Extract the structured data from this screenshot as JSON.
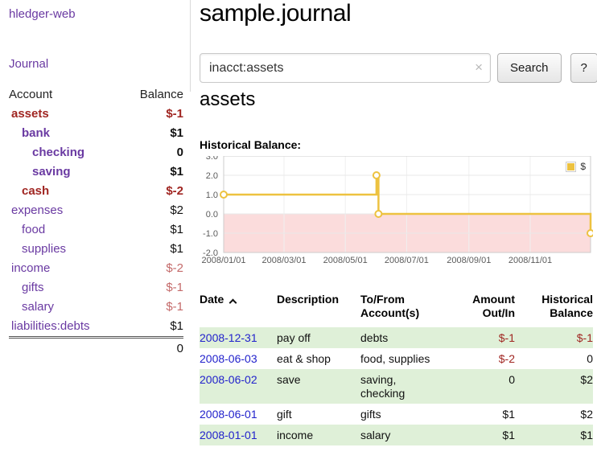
{
  "app_title": "hledger-web",
  "sidebar": {
    "journal_link": "Journal",
    "accounts_header": {
      "account": "Account",
      "balance": "Balance"
    },
    "accounts": [
      {
        "name": "assets",
        "balance": "$-1",
        "depth": 1,
        "bold": true,
        "name_color": "neg",
        "balance_color": "neg"
      },
      {
        "name": "bank",
        "balance": "$1",
        "depth": 2,
        "bold": true,
        "name_color": "link",
        "balance_color": "normal"
      },
      {
        "name": "checking",
        "balance": "0",
        "depth": 3,
        "bold": true,
        "name_color": "link",
        "balance_color": "normal"
      },
      {
        "name": "saving",
        "balance": "$1",
        "depth": 3,
        "bold": true,
        "name_color": "link",
        "balance_color": "normal"
      },
      {
        "name": "cash",
        "balance": "$-2",
        "depth": 2,
        "bold": true,
        "name_color": "neg",
        "balance_color": "neg"
      },
      {
        "name": "expenses",
        "balance": "$2",
        "depth": 1,
        "bold": false,
        "name_color": "link",
        "balance_color": "normal"
      },
      {
        "name": "food",
        "balance": "$1",
        "depth": 2,
        "bold": false,
        "name_color": "link",
        "balance_color": "normal"
      },
      {
        "name": "supplies",
        "balance": "$1",
        "depth": 2,
        "bold": false,
        "name_color": "link",
        "balance_color": "normal"
      },
      {
        "name": "income",
        "balance": "$-2",
        "depth": 1,
        "bold": false,
        "name_color": "link",
        "balance_color": "negsoft"
      },
      {
        "name": "gifts",
        "balance": "$-1",
        "depth": 2,
        "bold": false,
        "name_color": "link",
        "balance_color": "negsoft"
      },
      {
        "name": "salary",
        "balance": "$-1",
        "depth": 2,
        "bold": false,
        "name_color": "link",
        "balance_color": "negsoft"
      },
      {
        "name": "liabilities:debts",
        "balance": "$1",
        "depth": 1,
        "bold": false,
        "name_color": "link",
        "balance_color": "normal"
      }
    ],
    "total": "0"
  },
  "main": {
    "title": "sample.journal",
    "search": {
      "value": "inacct:assets",
      "clear_icon": "×",
      "button_label": "Search",
      "help_label": "?"
    },
    "account_heading": "assets",
    "chart_title": "Historical Balance:"
  },
  "chart_data": {
    "type": "line",
    "step": true,
    "title": "Historical Balance",
    "series": [
      {
        "name": "$",
        "color": "#edc240",
        "points": [
          [
            "2008-01-01",
            1
          ],
          [
            "2008-06-01",
            2
          ],
          [
            "2008-06-03",
            0
          ],
          [
            "2008-12-31",
            -1
          ]
        ]
      }
    ],
    "ylim": [
      -2,
      3
    ],
    "yticks": [
      3,
      2,
      1,
      0,
      -1,
      -2
    ],
    "xticks": [
      "2008/01/01",
      "2008/03/01",
      "2008/05/01",
      "2008/07/01",
      "2008/09/01",
      "2008/11/01"
    ],
    "negative_region_color": "#fbdcdc",
    "grid": true,
    "legend_position": "top-right"
  },
  "register": {
    "headers": {
      "date": "Date",
      "description": "Description",
      "accounts": "To/From\nAccount(s)",
      "amount": "Amount\nOut/In",
      "balance": "Historical\nBalance"
    },
    "rows": [
      {
        "date": "2008-12-31",
        "description": "pay off",
        "accounts": "debts",
        "amount": "$-1",
        "amount_neg": true,
        "balance": "$-1",
        "balance_neg": true,
        "shade": true
      },
      {
        "date": "2008-06-03",
        "description": "eat & shop",
        "accounts": "food, supplies",
        "amount": "$-2",
        "amount_neg": true,
        "balance": "0",
        "balance_neg": false,
        "shade": false
      },
      {
        "date": "2008-06-02",
        "description": "save",
        "accounts": "saving,\nchecking",
        "amount": "0",
        "amount_neg": false,
        "balance": "$2",
        "balance_neg": false,
        "shade": true
      },
      {
        "date": "2008-06-01",
        "description": "gift",
        "accounts": "gifts",
        "amount": "$1",
        "amount_neg": false,
        "balance": "$2",
        "balance_neg": false,
        "shade": false
      },
      {
        "date": "2008-01-01",
        "description": "income",
        "accounts": "salary",
        "amount": "$1",
        "amount_neg": false,
        "balance": "$1",
        "balance_neg": false,
        "shade": true
      }
    ]
  },
  "colors": {
    "link_purple": "#6a3aa2",
    "negative_strong": "#a02622",
    "negative_soft": "#c46a6a",
    "date_blue": "#2222cc",
    "row_green": "#dff0d8",
    "chart_yellow": "#edc240"
  }
}
